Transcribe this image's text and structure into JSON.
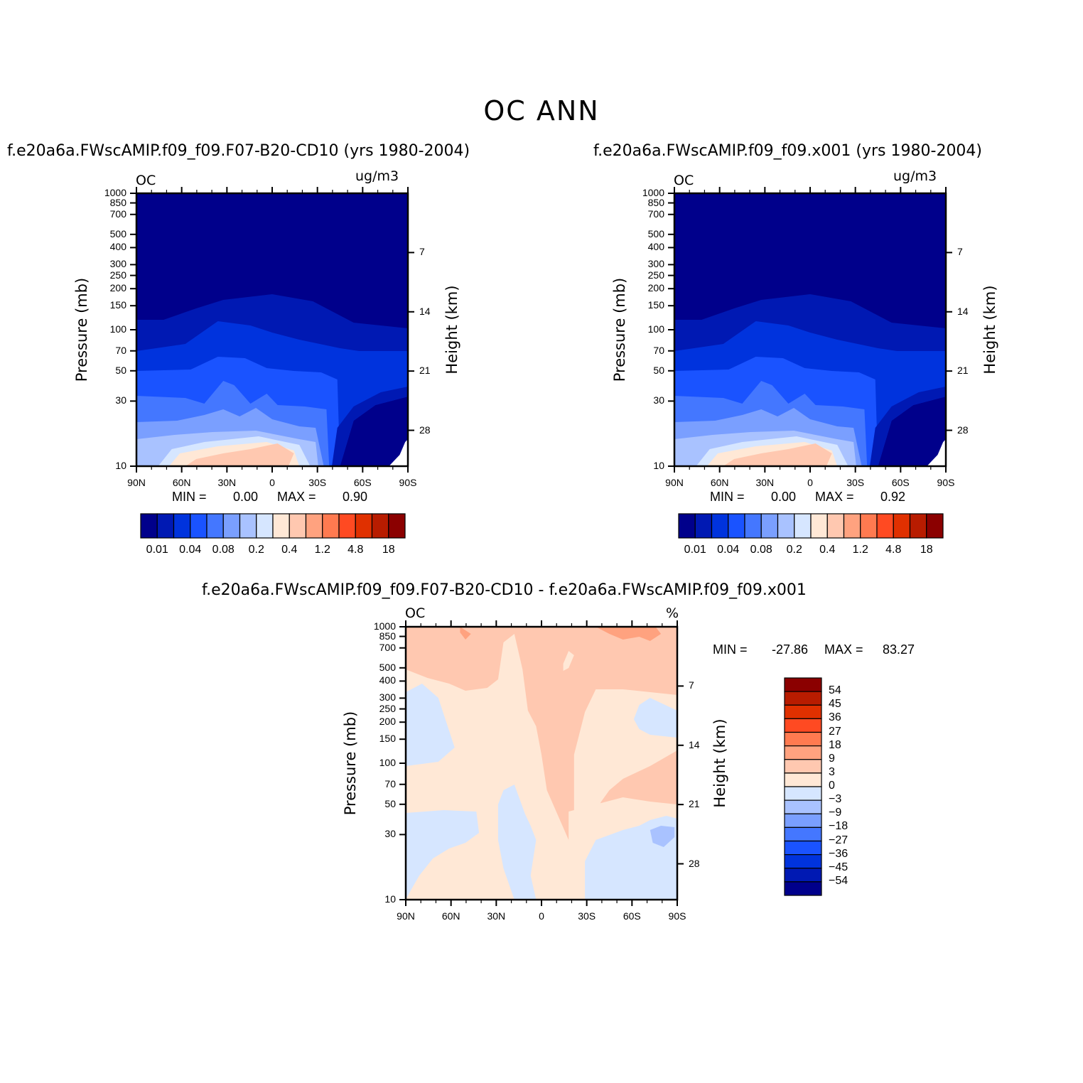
{
  "title": "OC ANN",
  "chart_data": [
    {
      "type": "heatmap",
      "panel": "left",
      "title": "f.e20a6a.FWscAMIP.f09_f09.F07-B20-CD10 (yrs 1980-2004)",
      "variable_label": "OC",
      "units": "ug/m3",
      "xlabel": "",
      "ylabel": "Pressure (mb)",
      "y2label": "Height (km)",
      "x_ticks": [
        "90N",
        "60N",
        "30N",
        "0",
        "30S",
        "60S",
        "90S"
      ],
      "y_ticks": [
        "10",
        "30",
        "50",
        "70",
        "100",
        "150",
        "200",
        "250",
        "300",
        "400",
        "500",
        "700",
        "850",
        "1000"
      ],
      "y2_ticks": [
        "28",
        "21",
        "14",
        "7"
      ],
      "ylim": [
        1000,
        10
      ],
      "y_scale": "log",
      "min_label": "MIN =",
      "min_value": "0.00",
      "max_label": "MAX =",
      "max_value": "0.90",
      "colorbar_labels": [
        "0.01",
        "0.04",
        "0.08",
        "0.2",
        "0.4",
        "1.2",
        "4.8",
        "18"
      ]
    },
    {
      "type": "heatmap",
      "panel": "right",
      "title": "f.e20a6a.FWscAMIP.f09_f09.x001 (yrs 1980-2004)",
      "variable_label": "OC",
      "units": "ug/m3",
      "xlabel": "",
      "ylabel": "Pressure (mb)",
      "y2label": "Height (km)",
      "x_ticks": [
        "90N",
        "60N",
        "30N",
        "0",
        "30S",
        "60S",
        "90S"
      ],
      "y_ticks": [
        "10",
        "30",
        "50",
        "70",
        "100",
        "150",
        "200",
        "250",
        "300",
        "400",
        "500",
        "700",
        "850",
        "1000"
      ],
      "y2_ticks": [
        "28",
        "21",
        "14",
        "7"
      ],
      "ylim": [
        1000,
        10
      ],
      "y_scale": "log",
      "min_label": "MIN =",
      "min_value": "0.00",
      "max_label": "MAX =",
      "max_value": "0.92",
      "colorbar_labels": [
        "0.01",
        "0.04",
        "0.08",
        "0.2",
        "0.4",
        "1.2",
        "4.8",
        "18"
      ]
    },
    {
      "type": "heatmap",
      "panel": "difference",
      "title": "f.e20a6a.FWscAMIP.f09_f09.F07-B20-CD10 - f.e20a6a.FWscAMIP.f09_f09.x001",
      "variable_label": "OC",
      "units": "%",
      "xlabel": "",
      "ylabel": "Pressure (mb)",
      "y2label": "Height (km)",
      "x_ticks": [
        "90N",
        "60N",
        "30N",
        "0",
        "30S",
        "60S",
        "90S"
      ],
      "y_ticks": [
        "10",
        "30",
        "50",
        "70",
        "100",
        "150",
        "200",
        "250",
        "300",
        "400",
        "500",
        "700",
        "850",
        "1000"
      ],
      "y2_ticks": [
        "28",
        "21",
        "14",
        "7"
      ],
      "ylim": [
        1000,
        10
      ],
      "y_scale": "log",
      "min_label": "MIN =",
      "min_value": "-27.86",
      "max_label": "MAX =",
      "max_value": "83.27",
      "colorbar_labels": [
        "54",
        "45",
        "36",
        "27",
        "18",
        "9",
        "3",
        "0",
        "-3",
        "-9",
        "-18",
        "-27",
        "-36",
        "-45",
        "-54"
      ]
    }
  ],
  "colors": {
    "abs_scale": [
      "#00008b",
      "#0019b3",
      "#0033dd",
      "#1a53ff",
      "#4477ff",
      "#7a9fff",
      "#a9c2ff",
      "#d6e6ff",
      "#ffe8d6",
      "#ffc8b0",
      "#ffa27f",
      "#ff7a50",
      "#ff4a22",
      "#e03000",
      "#b81c00",
      "#8b0000"
    ],
    "diff_scale": [
      "#8b0000",
      "#b81c00",
      "#e03000",
      "#ff4a22",
      "#ff7a50",
      "#ffa27f",
      "#ffc8b0",
      "#ffe8d6",
      "#d6e6ff",
      "#a9c2ff",
      "#7a9fff",
      "#4477ff",
      "#1a53ff",
      "#0033dd",
      "#0019b3",
      "#00008b"
    ]
  }
}
